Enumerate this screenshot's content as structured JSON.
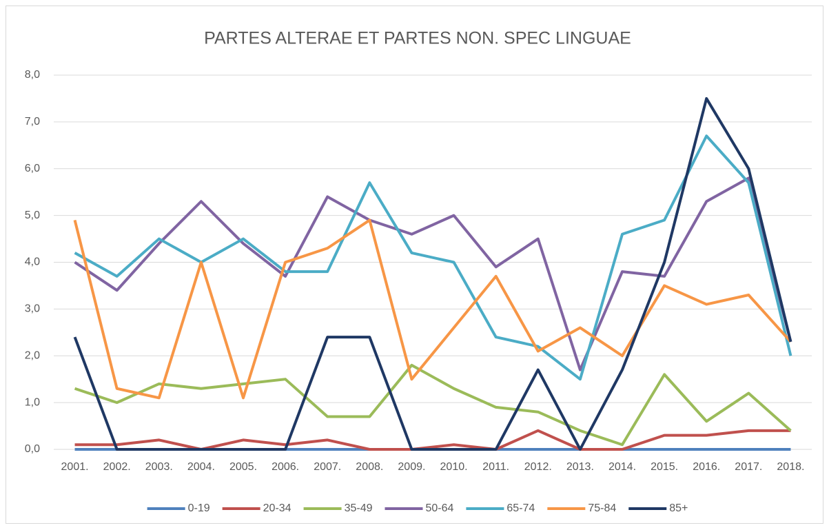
{
  "chart_data": {
    "type": "line",
    "title": "PARTES ALTERAE ET PARTES NON. SPEC LINGUAE",
    "categories": [
      "2001.",
      "2002.",
      "2003.",
      "2004.",
      "2005.",
      "2006.",
      "2007.",
      "2008.",
      "2009.",
      "2010.",
      "2011.",
      "2012.",
      "2013.",
      "2014.",
      "2015.",
      "2016.",
      "2017.",
      "2018."
    ],
    "ylim": [
      0,
      8
    ],
    "yticks": [
      {
        "value": 0,
        "label": "0,0"
      },
      {
        "value": 1,
        "label": "1,0"
      },
      {
        "value": 2,
        "label": "2,0"
      },
      {
        "value": 3,
        "label": "3,0"
      },
      {
        "value": 4,
        "label": "4,0"
      },
      {
        "value": 5,
        "label": "5,0"
      },
      {
        "value": 6,
        "label": "6,0"
      },
      {
        "value": 7,
        "label": "7,0"
      },
      {
        "value": 8,
        "label": "8,0"
      }
    ],
    "grid": true,
    "legend": "bottom",
    "series": [
      {
        "name": "0-19",
        "color": "#4f81bd",
        "values": [
          0,
          0,
          0,
          0,
          0,
          0,
          0,
          0,
          0,
          0,
          0,
          0,
          0,
          0,
          0,
          0,
          0,
          0
        ]
      },
      {
        "name": "20-34",
        "color": "#c0504d",
        "values": [
          0.1,
          0.1,
          0.2,
          0,
          0.2,
          0.1,
          0.2,
          0,
          0,
          0.1,
          0,
          0.4,
          0,
          0,
          0.3,
          0.3,
          0.4,
          0.4
        ]
      },
      {
        "name": "35-49",
        "color": "#9bbb59",
        "values": [
          1.3,
          1.0,
          1.4,
          1.3,
          1.4,
          1.5,
          0.7,
          0.7,
          1.8,
          1.3,
          0.9,
          0.8,
          0.4,
          0.1,
          1.6,
          0.6,
          1.2,
          0.4
        ]
      },
      {
        "name": "50-64",
        "color": "#8064a2",
        "values": [
          4.0,
          3.4,
          4.4,
          5.3,
          4.4,
          3.7,
          5.4,
          4.9,
          4.6,
          5.0,
          3.9,
          4.5,
          1.7,
          3.8,
          3.7,
          5.3,
          5.8,
          2.3
        ]
      },
      {
        "name": "65-74",
        "color": "#4bacc6",
        "values": [
          4.2,
          3.7,
          4.5,
          4.0,
          4.5,
          3.8,
          3.8,
          5.7,
          4.2,
          4.0,
          2.4,
          2.2,
          1.5,
          4.6,
          4.9,
          6.7,
          5.7,
          2.0
        ]
      },
      {
        "name": "75-84",
        "color": "#f79646",
        "values": [
          4.9,
          1.3,
          1.1,
          4.0,
          1.1,
          4.0,
          4.3,
          4.9,
          1.5,
          2.6,
          3.7,
          2.1,
          2.6,
          2.0,
          3.5,
          3.1,
          3.3,
          2.3
        ]
      },
      {
        "name": "85+",
        "color": "#1f3864",
        "values": [
          2.4,
          0,
          0,
          0,
          0,
          0,
          2.4,
          2.4,
          0,
          0,
          0,
          1.7,
          0,
          1.7,
          4.0,
          7.5,
          6.0,
          2.3
        ]
      }
    ]
  }
}
